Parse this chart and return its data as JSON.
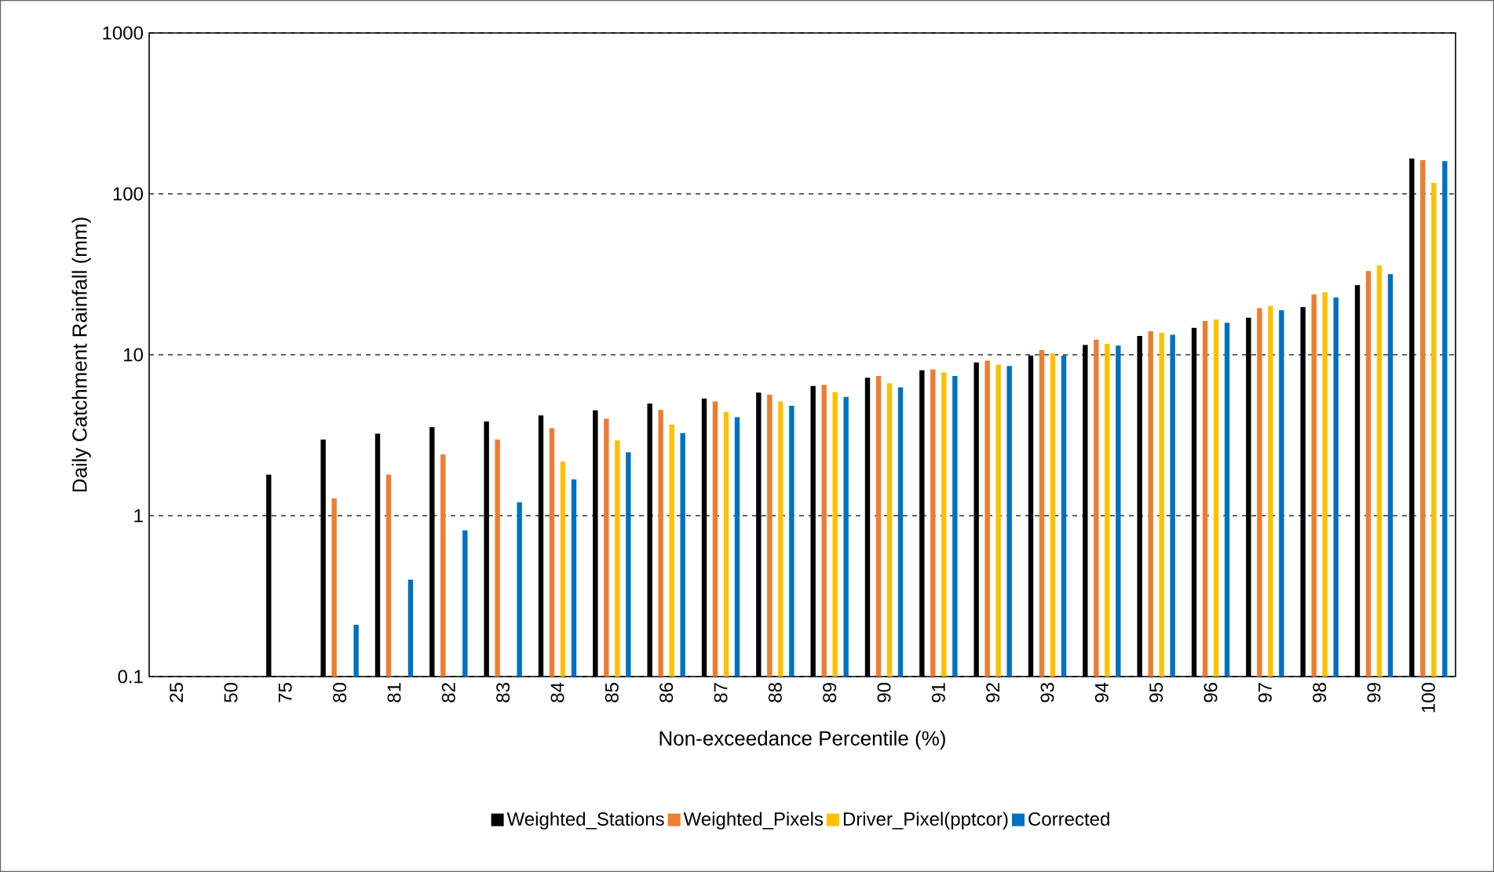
{
  "chart_data": {
    "type": "bar",
    "xlabel": "Non-exceedance Percentile (%)",
    "ylabel": "Daily Catchment Rainfall (mm)",
    "categories": [
      "25",
      "50",
      "75",
      "80",
      "81",
      "82",
      "83",
      "84",
      "85",
      "86",
      "87",
      "88",
      "89",
      "90",
      "91",
      "92",
      "93",
      "94",
      "95",
      "96",
      "97",
      "98",
      "99",
      "100"
    ],
    "series": [
      {
        "name": "Weighted_Stations",
        "color": "#000000",
        "values": [
          null,
          null,
          1.8,
          2.97,
          3.23,
          3.55,
          3.85,
          4.2,
          4.52,
          4.97,
          5.34,
          5.82,
          6.4,
          7.21,
          8.0,
          8.95,
          9.9,
          11.5,
          13.1,
          14.7,
          17.0,
          19.8,
          27.1,
          166
        ]
      },
      {
        "name": "Weighted_Pixels",
        "color": "#ed7d31",
        "values": [
          null,
          null,
          null,
          1.28,
          1.8,
          2.4,
          2.97,
          3.5,
          4.0,
          4.54,
          5.12,
          5.65,
          6.51,
          7.38,
          8.1,
          9.2,
          10.7,
          12.4,
          14.0,
          16.2,
          19.5,
          23.7,
          33.2,
          162
        ]
      },
      {
        "name": "Driver_Pixel(pptcor)",
        "color": "#ffc000",
        "values": [
          null,
          null,
          null,
          null,
          null,
          null,
          null,
          2.17,
          2.94,
          3.68,
          4.42,
          5.12,
          5.87,
          6.65,
          7.77,
          8.7,
          10.2,
          11.7,
          13.7,
          16.6,
          20.1,
          24.5,
          35.9,
          117
        ]
      },
      {
        "name": "Corrected",
        "color": "#0070c0",
        "values": [
          null,
          null,
          null,
          0.21,
          0.4,
          0.81,
          1.21,
          1.68,
          2.48,
          3.26,
          4.09,
          4.82,
          5.46,
          6.27,
          7.38,
          8.53,
          9.9,
          11.4,
          13.3,
          15.8,
          18.9,
          22.7,
          31.7,
          160
        ]
      }
    ],
    "log": "y",
    "ylim": [
      0.1,
      1000
    ],
    "yticks": [
      0.1,
      1,
      10,
      100,
      1000
    ],
    "grid": "y",
    "legend": "bottom"
  }
}
